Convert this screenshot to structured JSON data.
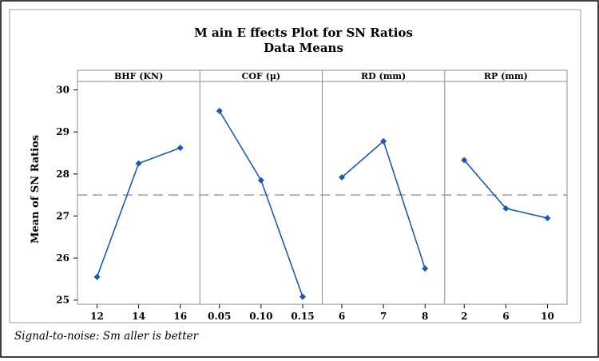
{
  "chart_data": {
    "type": "line",
    "title": "M ain E ffects Plot for SN Ratios",
    "subtitle": "Data Means",
    "ylabel": "Mean of SN Ratios",
    "ylim": [
      24.9,
      30.2
    ],
    "yticks": [
      25,
      26,
      27,
      28,
      29,
      30
    ],
    "reference_line": 27.5,
    "footnote": "Signal-to-noise: Sm aller is better",
    "series_color": "#1f5aa6",
    "panels": [
      {
        "name": "BHF (KN)",
        "categories": [
          "12",
          "14",
          "16"
        ],
        "values": [
          25.55,
          28.25,
          28.62
        ]
      },
      {
        "name": "COF (μ)",
        "categories": [
          "0.05",
          "0.10",
          "0.15"
        ],
        "values": [
          29.5,
          27.85,
          25.08
        ]
      },
      {
        "name": "RD (mm)",
        "categories": [
          "6",
          "7",
          "8"
        ],
        "values": [
          27.92,
          28.78,
          25.75
        ]
      },
      {
        "name": "RP (mm)",
        "categories": [
          "2",
          "6",
          "10"
        ],
        "values": [
          28.33,
          27.18,
          26.95
        ]
      }
    ]
  }
}
